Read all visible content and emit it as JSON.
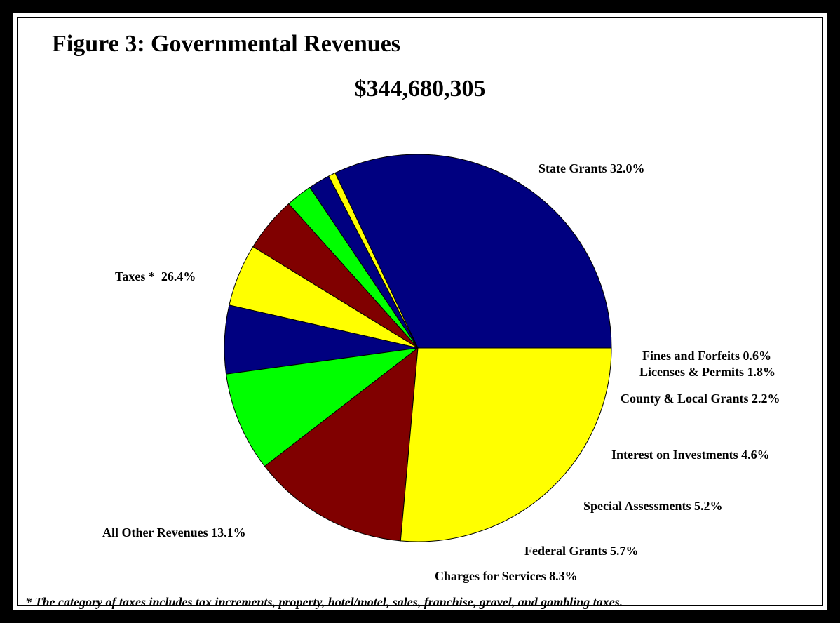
{
  "title": "Figure 3:  Governmental Revenues",
  "subtitle": "$344,680,305",
  "footnote": "* The category of taxes includes tax increments, property, hotel/motel, sales, franchise, gravel, and gambling taxes.",
  "chart_data": {
    "type": "pie",
    "title": "Figure 3:  Governmental Revenues",
    "subtitle": "$344,680,305",
    "slices": [
      {
        "label": "State Grants 32.0%",
        "name": "State Grants",
        "value": 32.0,
        "color": "#000080"
      },
      {
        "label": "Fines and Forfeits 0.6%",
        "name": "Fines and Forfeits",
        "value": 0.6,
        "color": "#ffff00"
      },
      {
        "label": "Licenses & Permits 1.8%",
        "name": "Licenses & Permits",
        "value": 1.8,
        "color": "#000080"
      },
      {
        "label": "County & Local Grants 2.2%",
        "name": "County & Local Grants",
        "value": 2.2,
        "color": "#00ff00"
      },
      {
        "label": "Interest on Investments 4.6%",
        "name": "Interest on Investments",
        "value": 4.6,
        "color": "#800000"
      },
      {
        "label": "Special Assessments 5.2%",
        "name": "Special Assessments",
        "value": 5.2,
        "color": "#ffff00"
      },
      {
        "label": "Federal Grants 5.7%",
        "name": "Federal Grants",
        "value": 5.7,
        "color": "#000080"
      },
      {
        "label": "Charges for Services 8.3%",
        "name": "Charges for Services",
        "value": 8.3,
        "color": "#00ff00"
      },
      {
        "label": "All Other Revenues 13.1%",
        "name": "All Other Revenues",
        "value": 13.1,
        "color": "#800000"
      },
      {
        "label": "Taxes *  26.4%",
        "name": "Taxes *",
        "value": 26.4,
        "color": "#ffff00"
      }
    ]
  }
}
